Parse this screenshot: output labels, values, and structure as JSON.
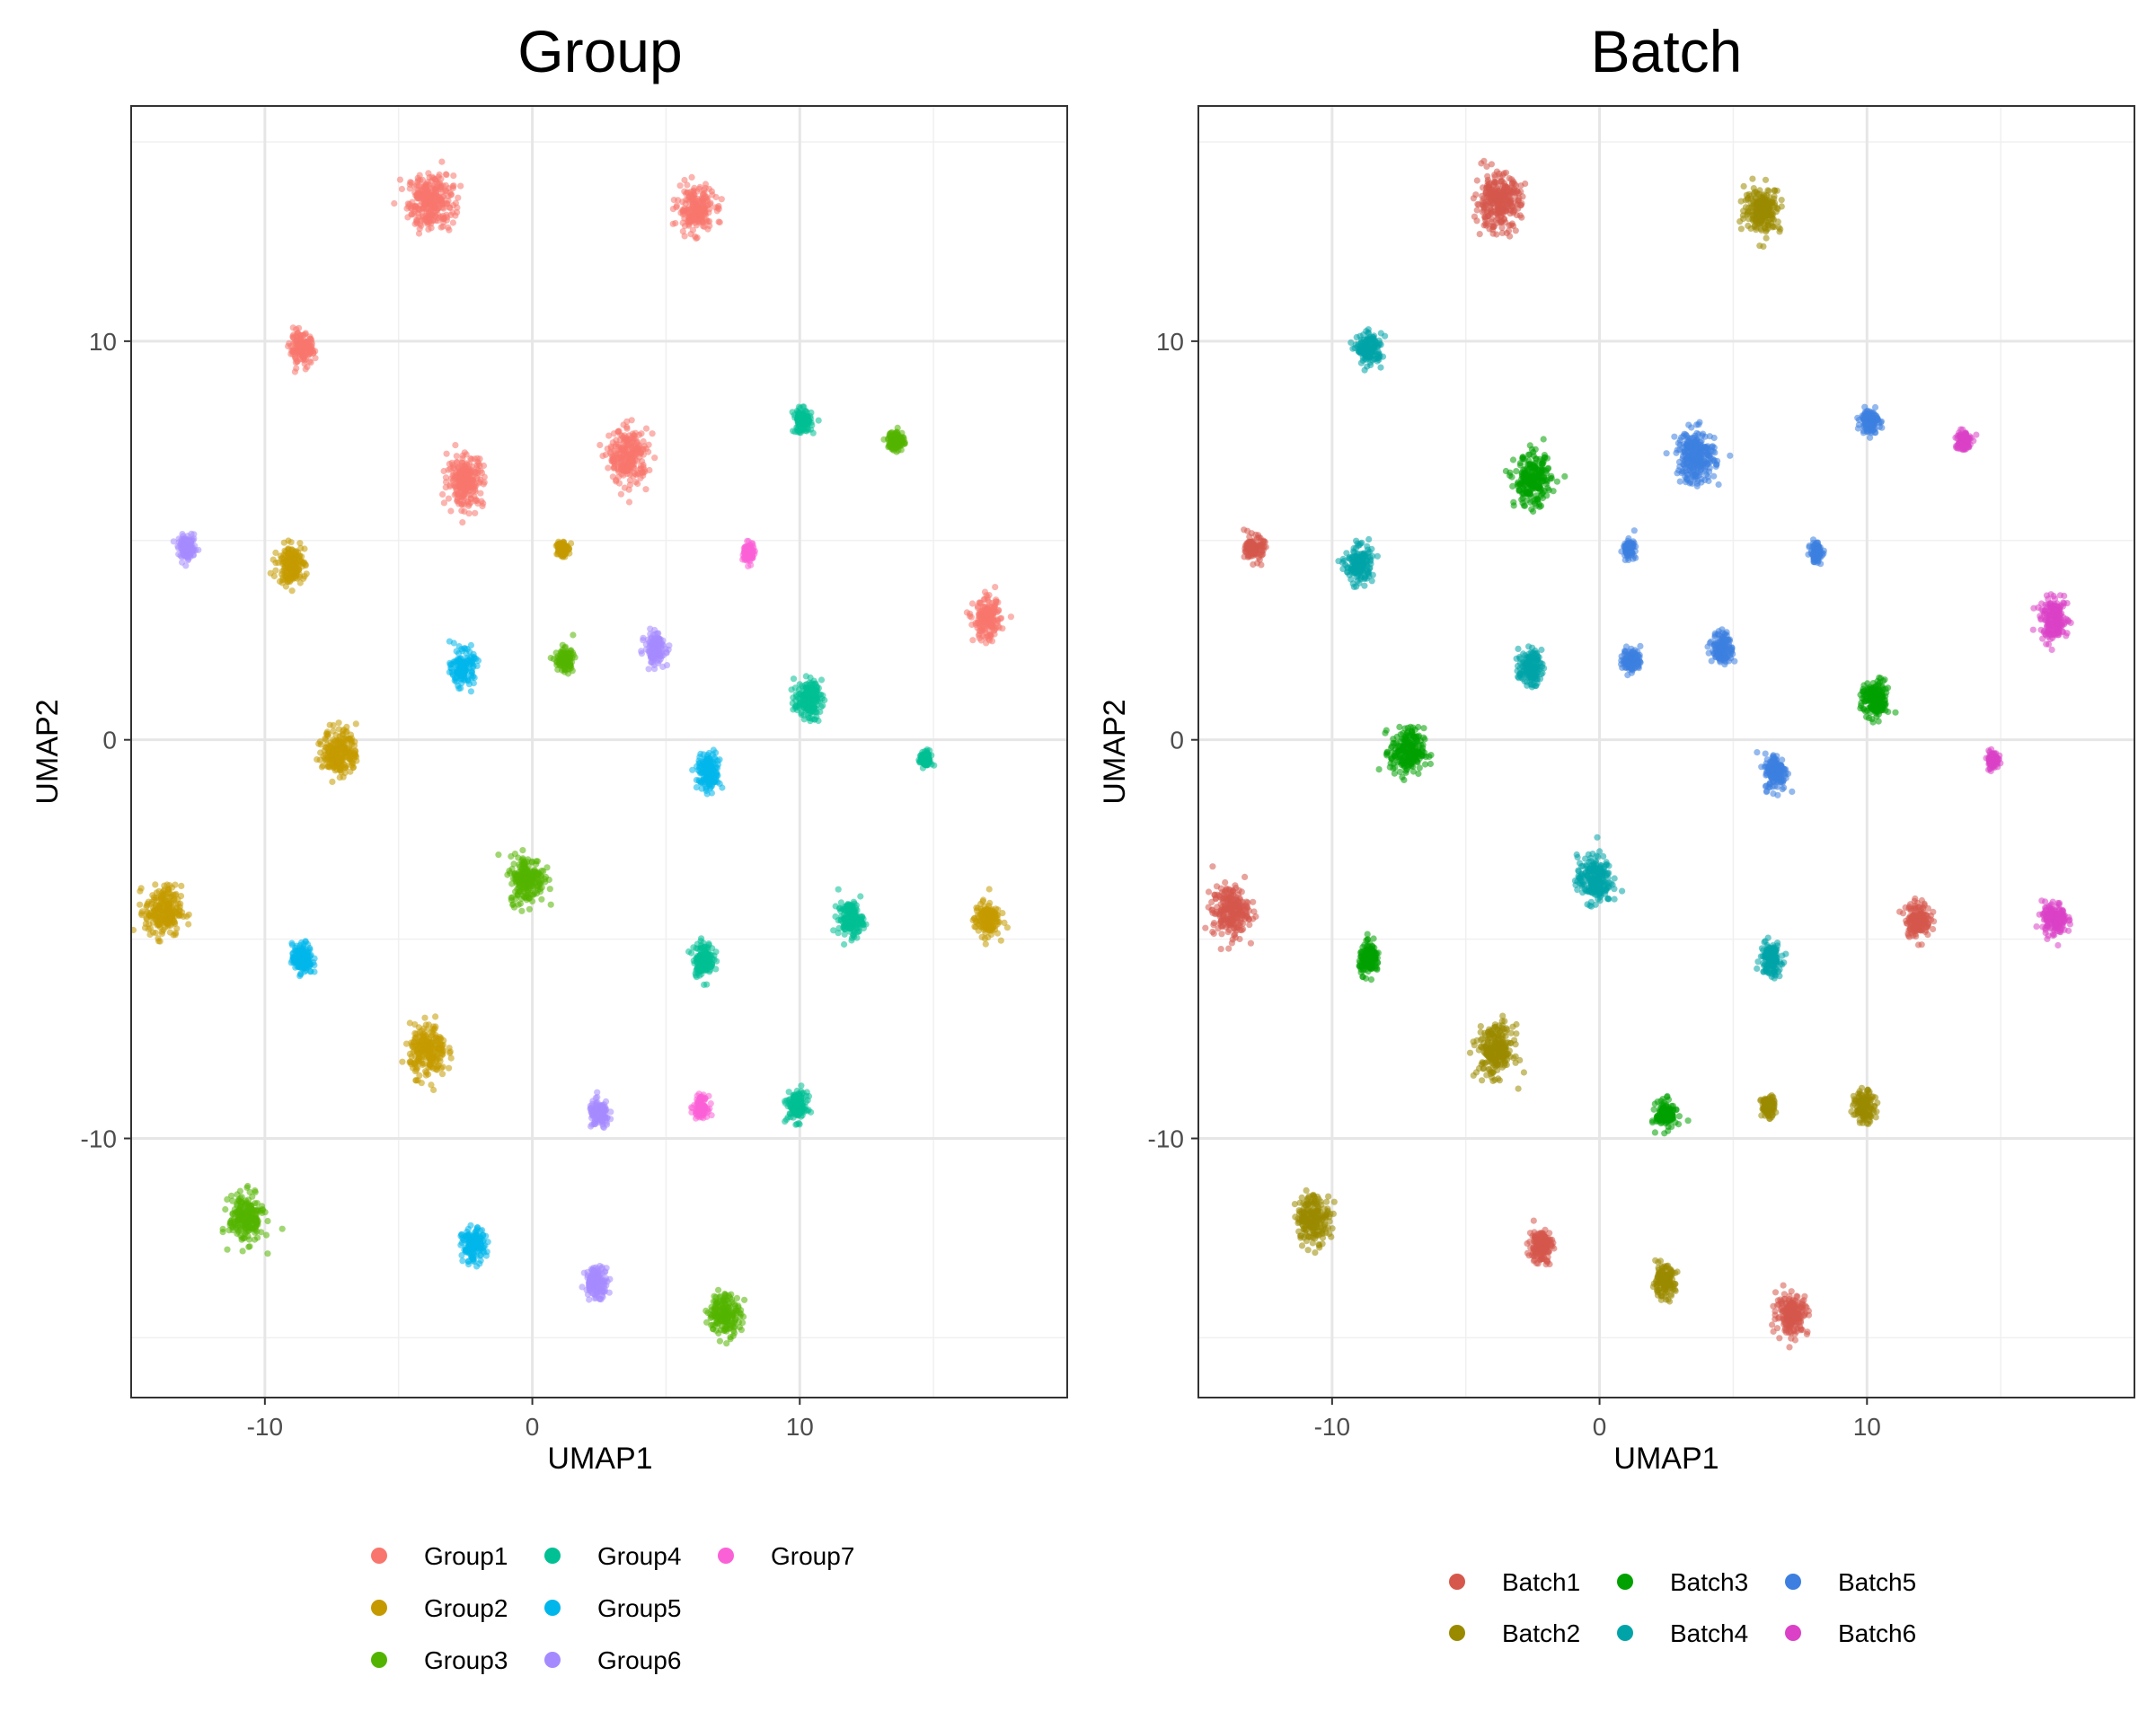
{
  "chart_data": [
    {
      "type": "scatter",
      "title": "Group",
      "xlabel": "UMAP1",
      "ylabel": "UMAP2",
      "xlim": [
        -15,
        20
      ],
      "ylim": [
        -16.5,
        15.9
      ],
      "xticks": [
        -10,
        0,
        10
      ],
      "yticks": [
        -10,
        0,
        10
      ],
      "grid": true,
      "legend_position": "bottom",
      "legend_columns": 3,
      "series": [
        {
          "name": "Group1",
          "color": "#F8766D"
        },
        {
          "name": "Group2",
          "color": "#C49A00"
        },
        {
          "name": "Group3",
          "color": "#53B400"
        },
        {
          "name": "Group4",
          "color": "#00C094"
        },
        {
          "name": "Group5",
          "color": "#00B6EB"
        },
        {
          "name": "Group6",
          "color": "#A58AFF"
        },
        {
          "name": "Group7",
          "color": "#FB61D7"
        }
      ]
    },
    {
      "type": "scatter",
      "title": "Batch",
      "xlabel": "UMAP1",
      "ylabel": "UMAP2",
      "xlim": [
        -15,
        20
      ],
      "ylim": [
        -16.5,
        15.9
      ],
      "xticks": [
        -10,
        0,
        10
      ],
      "yticks": [
        -10,
        0,
        10
      ],
      "grid": true,
      "legend_position": "bottom",
      "legend_columns": 3,
      "series": [
        {
          "name": "Batch1",
          "color": "#D6584C"
        },
        {
          "name": "Batch2",
          "color": "#9A8A00"
        },
        {
          "name": "Batch3",
          "color": "#00A100"
        },
        {
          "name": "Batch4",
          "color": "#00A4A8"
        },
        {
          "name": "Batch5",
          "color": "#3C7FE0"
        },
        {
          "name": "Batch6",
          "color": "#DB41C6"
        }
      ]
    }
  ],
  "clusters": [
    {
      "x": -3.8,
      "y": 13.5,
      "sx": 1.0,
      "sy": 0.8,
      "group": "Group1",
      "batch": "Batch1"
    },
    {
      "x": 6.1,
      "y": 13.3,
      "sx": 0.8,
      "sy": 0.65,
      "group": "Group1",
      "batch": "Batch2"
    },
    {
      "x": -8.6,
      "y": 9.8,
      "sx": 0.55,
      "sy": 0.45,
      "group": "Group1",
      "batch": "Batch4"
    },
    {
      "x": -2.5,
      "y": 6.5,
      "sx": 0.8,
      "sy": 0.75,
      "group": "Group1",
      "batch": "Batch3"
    },
    {
      "x": 3.6,
      "y": 7.1,
      "sx": 0.85,
      "sy": 0.8,
      "group": "Group1",
      "batch": "Batch5"
    },
    {
      "x": 17.0,
      "y": 3.0,
      "sx": 0.6,
      "sy": 0.6,
      "group": "Group1",
      "batch": "Batch6"
    },
    {
      "x": 10.1,
      "y": 8.0,
      "sx": 0.4,
      "sy": 0.35,
      "group": "Group4",
      "batch": "Batch5"
    },
    {
      "x": 13.6,
      "y": 7.5,
      "sx": 0.35,
      "sy": 0.3,
      "group": "Group3",
      "batch": "Batch6"
    },
    {
      "x": -12.9,
      "y": 4.8,
      "sx": 0.4,
      "sy": 0.35,
      "group": "Group6",
      "batch": "Batch1"
    },
    {
      "x": -9.0,
      "y": 4.4,
      "sx": 0.6,
      "sy": 0.55,
      "group": "Group2",
      "batch": "Batch4"
    },
    {
      "x": 1.1,
      "y": 4.8,
      "sx": 0.25,
      "sy": 0.25,
      "group": "Group2",
      "batch": "Batch5"
    },
    {
      "x": 8.1,
      "y": 4.7,
      "sx": 0.25,
      "sy": 0.3,
      "group": "Group7",
      "batch": "Batch5"
    },
    {
      "x": -2.6,
      "y": 1.8,
      "sx": 0.5,
      "sy": 0.5,
      "group": "Group5",
      "batch": "Batch4"
    },
    {
      "x": 1.2,
      "y": 2.0,
      "sx": 0.4,
      "sy": 0.35,
      "group": "Group3",
      "batch": "Batch5"
    },
    {
      "x": 4.6,
      "y": 2.3,
      "sx": 0.45,
      "sy": 0.45,
      "group": "Group6",
      "batch": "Batch5"
    },
    {
      "x": 10.3,
      "y": 1.0,
      "sx": 0.6,
      "sy": 0.55,
      "group": "Group4",
      "batch": "Batch3"
    },
    {
      "x": -7.2,
      "y": -0.3,
      "sx": 0.75,
      "sy": 0.7,
      "group": "Group2",
      "batch": "Batch3"
    },
    {
      "x": 6.6,
      "y": -0.8,
      "sx": 0.5,
      "sy": 0.55,
      "group": "Group5",
      "batch": "Batch5"
    },
    {
      "x": 14.7,
      "y": -0.5,
      "sx": 0.25,
      "sy": 0.25,
      "group": "Group4",
      "batch": "Batch6"
    },
    {
      "x": -13.8,
      "y": -4.3,
      "sx": 0.8,
      "sy": 0.75,
      "group": "Group2",
      "batch": "Batch1"
    },
    {
      "x": -0.2,
      "y": -3.5,
      "sx": 0.75,
      "sy": 0.7,
      "group": "Group3",
      "batch": "Batch4"
    },
    {
      "x": 11.9,
      "y": -4.5,
      "sx": 0.55,
      "sy": 0.5,
      "group": "Group4",
      "batch": "Batch1"
    },
    {
      "x": 17.0,
      "y": -4.5,
      "sx": 0.55,
      "sy": 0.5,
      "group": "Group2",
      "batch": "Batch6"
    },
    {
      "x": -8.6,
      "y": -5.5,
      "sx": 0.45,
      "sy": 0.45,
      "group": "Group5",
      "batch": "Batch3"
    },
    {
      "x": 6.4,
      "y": -5.5,
      "sx": 0.45,
      "sy": 0.5,
      "group": "Group4",
      "batch": "Batch4"
    },
    {
      "x": -3.9,
      "y": -7.8,
      "sx": 0.8,
      "sy": 0.75,
      "group": "Group2",
      "batch": "Batch2"
    },
    {
      "x": 2.5,
      "y": -9.4,
      "sx": 0.45,
      "sy": 0.4,
      "group": "Group6",
      "batch": "Batch3"
    },
    {
      "x": 6.3,
      "y": -9.2,
      "sx": 0.3,
      "sy": 0.3,
      "group": "Group7",
      "batch": "Batch2"
    },
    {
      "x": 9.9,
      "y": -9.2,
      "sx": 0.45,
      "sy": 0.45,
      "group": "Group4",
      "batch": "Batch2"
    },
    {
      "x": -10.7,
      "y": -12.0,
      "sx": 0.75,
      "sy": 0.7,
      "group": "Group3",
      "batch": "Batch2"
    },
    {
      "x": -2.2,
      "y": -12.7,
      "sx": 0.5,
      "sy": 0.5,
      "group": "Group5",
      "batch": "Batch1"
    },
    {
      "x": 2.4,
      "y": -13.6,
      "sx": 0.5,
      "sy": 0.45,
      "group": "Group6",
      "batch": "Batch2"
    },
    {
      "x": 7.2,
      "y": -14.4,
      "sx": 0.7,
      "sy": 0.6,
      "group": "Group3",
      "batch": "Batch1"
    }
  ]
}
